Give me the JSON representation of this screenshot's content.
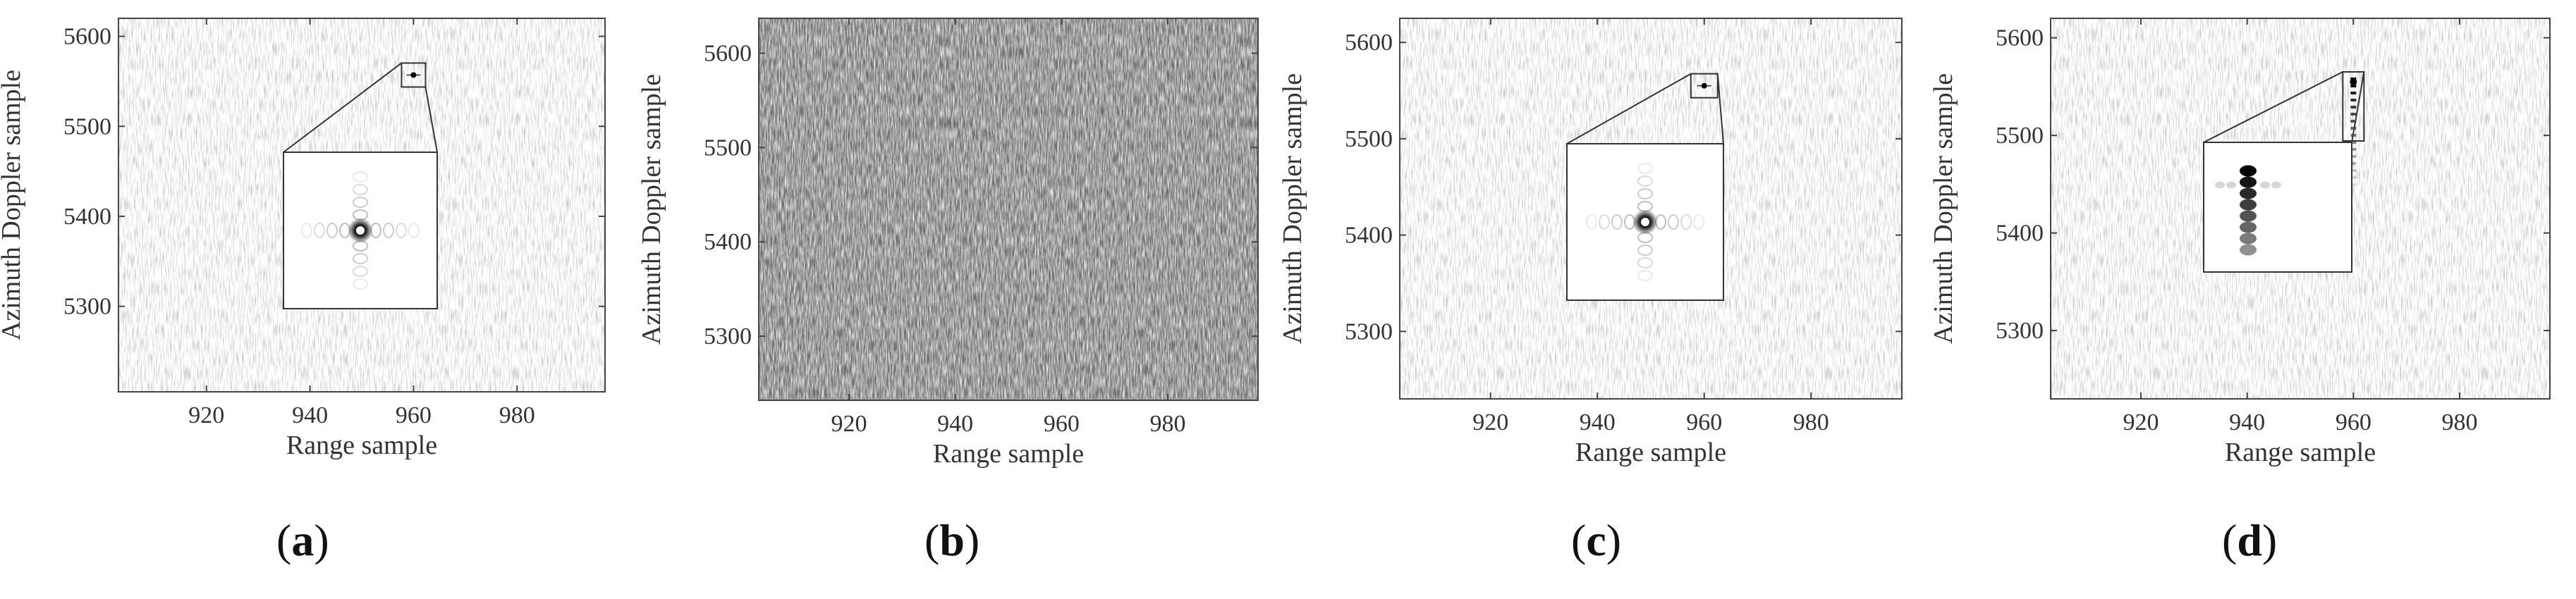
{
  "chart_data": [
    {
      "type": "heatmap",
      "caption": "a",
      "xlabel": "Range sample",
      "ylabel": "Azimuth Doppler sample",
      "xlim": [
        903,
        997
      ],
      "ylim": [
        5205,
        5620
      ],
      "xticks": [
        920,
        940,
        960,
        980
      ],
      "yticks": [
        5300,
        5400,
        5500,
        5600
      ],
      "background": "sparse-low-noise",
      "target": {
        "x": 960,
        "y": 5557,
        "pattern": "point-with-cross-sidelobes"
      }
    },
    {
      "type": "heatmap",
      "caption": "b",
      "xlabel": "Range sample",
      "ylabel": "Azimuth Doppler sample",
      "xlim": [
        903,
        997
      ],
      "ylim": [
        5232,
        5637
      ],
      "xticks": [
        920,
        940,
        960,
        980
      ],
      "yticks": [
        5300,
        5400,
        5500,
        5600
      ],
      "background": "dense-noise",
      "target": null
    },
    {
      "type": "heatmap",
      "caption": "c",
      "xlabel": "Range sample",
      "ylabel": "Azimuth Doppler sample",
      "xlim": [
        903,
        997
      ],
      "ylim": [
        5230,
        5625
      ],
      "xticks": [
        920,
        940,
        960,
        980
      ],
      "yticks": [
        5300,
        5400,
        5500,
        5600
      ],
      "background": "sparse-low-noise",
      "target": {
        "x": 960,
        "y": 5555,
        "pattern": "point-with-cross-sidelobes"
      }
    },
    {
      "type": "heatmap",
      "caption": "d",
      "xlabel": "Range sample",
      "ylabel": "Azimuth Doppler sample",
      "xlim": [
        903,
        997
      ],
      "ylim": [
        5230,
        5620
      ],
      "xticks": [
        920,
        940,
        960,
        980
      ],
      "yticks": [
        5300,
        5400,
        5500,
        5600
      ],
      "background": "sparse-low-noise",
      "target": {
        "x": 960,
        "y": 5555,
        "pattern": "azimuth-smeared"
      }
    }
  ],
  "captions": [
    "a",
    "b",
    "c",
    "d"
  ]
}
